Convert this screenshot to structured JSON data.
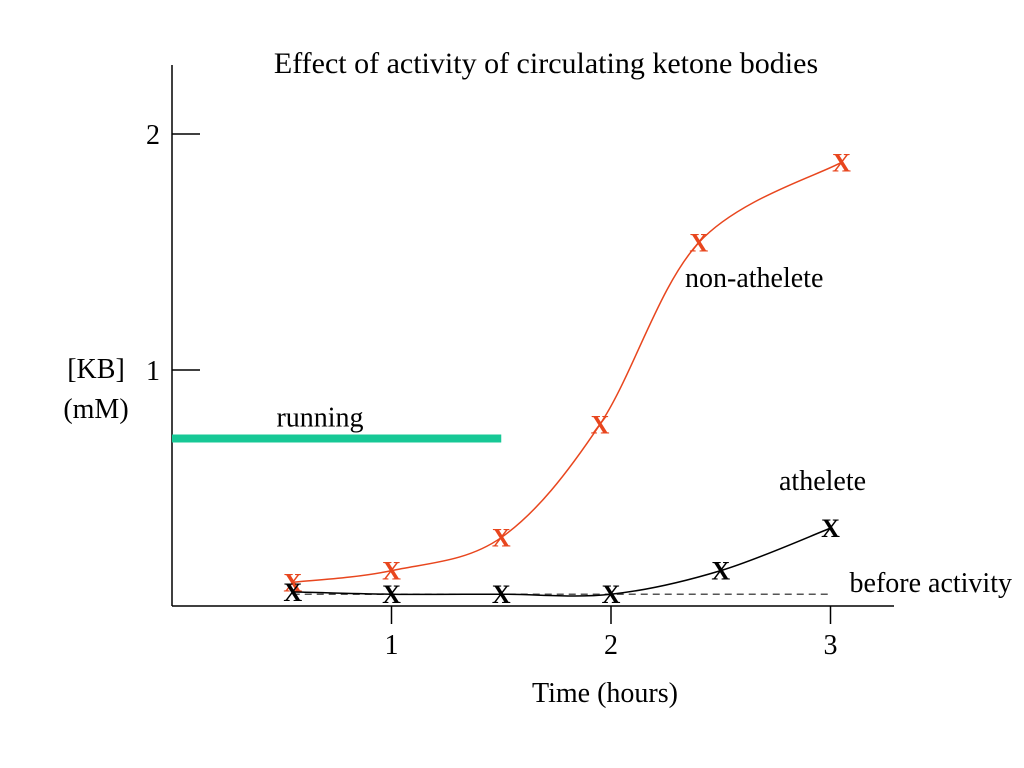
{
  "chart_data": {
    "type": "line",
    "title": "Effect of activity of circulating ketone bodies",
    "xlabel": "Time (hours)",
    "ylabel_lines": [
      "[KB]",
      "(mM)"
    ],
    "xlim": [
      0,
      3.3
    ],
    "ylim": [
      0,
      2.3
    ],
    "x_ticks": [
      {
        "value": 1,
        "label": "1"
      },
      {
        "value": 2,
        "label": "2"
      },
      {
        "value": 3,
        "label": "3"
      }
    ],
    "y_ticks": [
      {
        "value": 1,
        "label": "1"
      },
      {
        "value": 2,
        "label": "2"
      }
    ],
    "marker": "X",
    "series": [
      {
        "name": "non-athelete",
        "color": "#e8461e",
        "points": [
          {
            "x": 0.55,
            "y": 0.1
          },
          {
            "x": 1.0,
            "y": 0.15
          },
          {
            "x": 1.5,
            "y": 0.29
          },
          {
            "x": 1.95,
            "y": 0.77
          },
          {
            "x": 2.4,
            "y": 1.54
          },
          {
            "x": 3.05,
            "y": 1.88
          }
        ]
      },
      {
        "name": "athelete",
        "color": "#000000",
        "points": [
          {
            "x": 0.55,
            "y": 0.06
          },
          {
            "x": 1.0,
            "y": 0.05
          },
          {
            "x": 1.5,
            "y": 0.05
          },
          {
            "x": 2.0,
            "y": 0.05
          },
          {
            "x": 2.5,
            "y": 0.15
          },
          {
            "x": 3.0,
            "y": 0.33
          }
        ]
      }
    ],
    "reference_line": {
      "label": "before activity",
      "y": 0.05,
      "x_start": 0.55,
      "x_end": 3.0,
      "style": "dashed"
    },
    "activity_bar": {
      "label": "running",
      "x_start": 0.0,
      "x_end": 1.5,
      "y": 0.71,
      "color": "#17c896"
    },
    "annotations": {
      "non_athelete": "non-athelete",
      "athelete": "athelete"
    }
  }
}
